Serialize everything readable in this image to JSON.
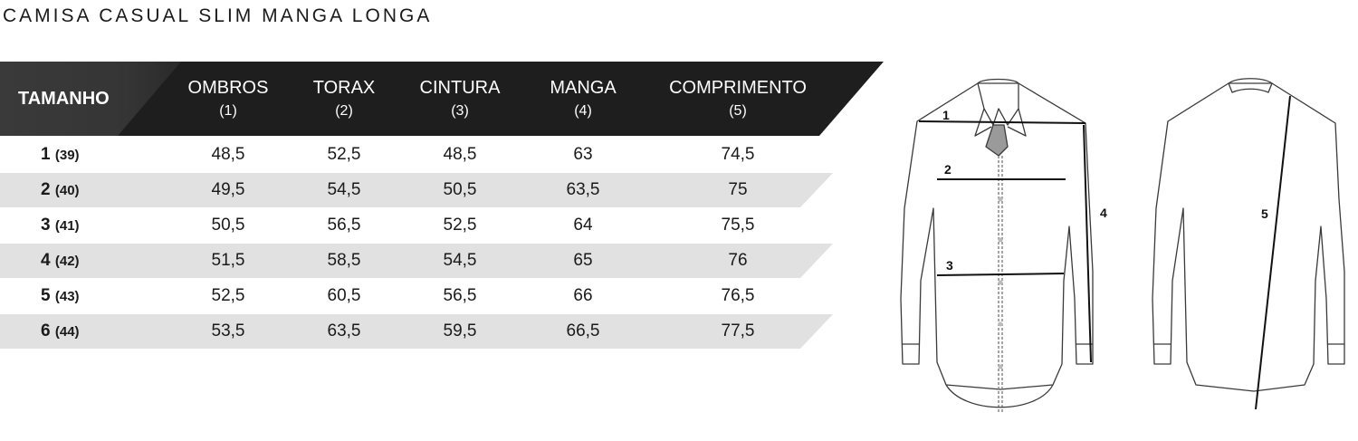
{
  "title": "CAMISA CASUAL SLIM MANGA LONGA",
  "table": {
    "size_header": "TAMANHO",
    "columns": [
      {
        "label": "OMBROS",
        "num": "(1)"
      },
      {
        "label": "TORAX",
        "num": "(2)"
      },
      {
        "label": "CINTURA",
        "num": "(3)"
      },
      {
        "label": "MANGA",
        "num": "(4)"
      },
      {
        "label": "COMPRIMENTO",
        "num": "(5)"
      }
    ],
    "rows": [
      {
        "size": "1",
        "sub": "(39)",
        "values": [
          "48,5",
          "52,5",
          "48,5",
          "63",
          "74,5"
        ]
      },
      {
        "size": "2",
        "sub": "(40)",
        "values": [
          "49,5",
          "54,5",
          "50,5",
          "63,5",
          "75"
        ]
      },
      {
        "size": "3",
        "sub": "(41)",
        "values": [
          "50,5",
          "56,5",
          "52,5",
          "64",
          "75,5"
        ]
      },
      {
        "size": "4",
        "sub": "(42)",
        "values": [
          "51,5",
          "58,5",
          "54,5",
          "65",
          "76"
        ]
      },
      {
        "size": "5",
        "sub": "(43)",
        "values": [
          "52,5",
          "60,5",
          "56,5",
          "66",
          "76,5"
        ]
      },
      {
        "size": "6",
        "sub": "(44)",
        "values": [
          "53,5",
          "63,5",
          "59,5",
          "66,5",
          "77,5"
        ]
      }
    ]
  },
  "diagram": {
    "labels": {
      "m1": "1",
      "m2": "2",
      "m3": "3",
      "m4": "4",
      "m5": "5"
    }
  }
}
